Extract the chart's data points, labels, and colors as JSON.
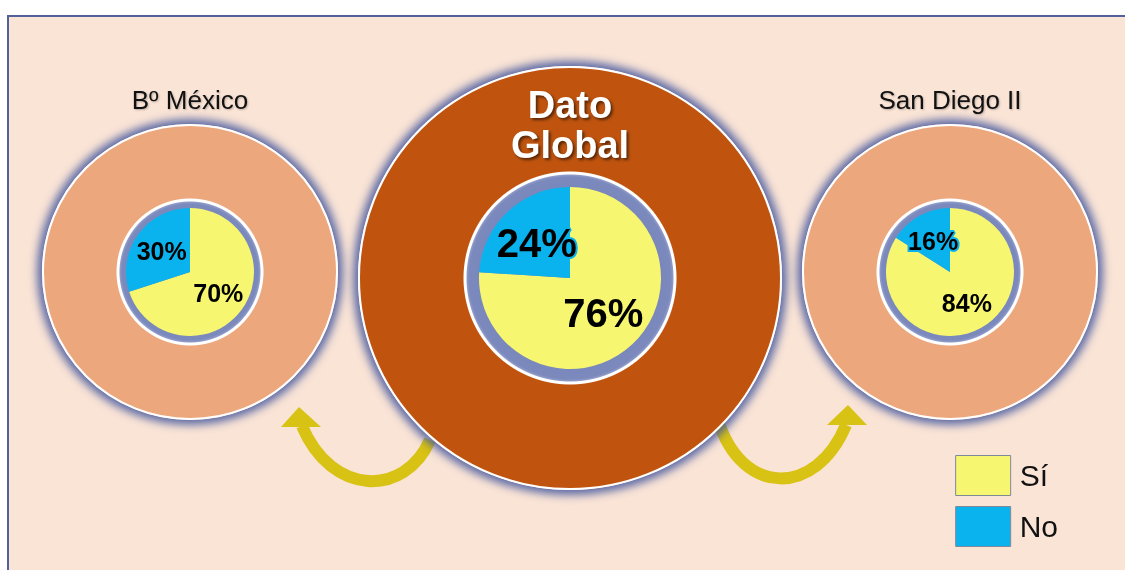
{
  "chart_data": [
    {
      "type": "pie",
      "title": "Bº México",
      "categories": [
        null,
        null
      ],
      "values": [
        70,
        30
      ],
      "colors": [
        "#f6f671",
        "#0ab3ee"
      ],
      "value_labels": [
        "70%",
        "30%"
      ]
    },
    {
      "type": "pie",
      "title": "Dato Global",
      "categories": [
        null,
        null
      ],
      "values": [
        76,
        24
      ],
      "colors": [
        "#f6f671",
        "#0ab3ee"
      ],
      "value_labels": [
        "76%",
        "24%"
      ]
    },
    {
      "type": "pie",
      "title": "San Diego II",
      "categories": [
        "Sí",
        "No"
      ],
      "values": [
        84,
        16
      ],
      "colors": [
        "#f6f671",
        "#0ab3ee"
      ],
      "value_labels": [
        "84%",
        "16%"
      ],
      "legend": "bottom right"
    }
  ]
}
